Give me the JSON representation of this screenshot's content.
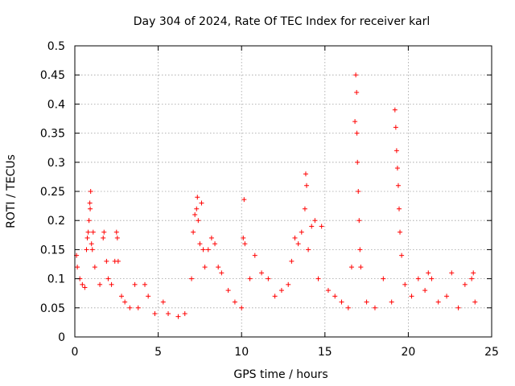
{
  "chart_data": {
    "type": "scatter",
    "title": "Day 304 of 2024, Rate Of TEC Index for receiver karl",
    "xlabel": "GPS time / hours",
    "ylabel": "ROTI / TECUs",
    "xlim": [
      0,
      25
    ],
    "ylim": [
      0,
      0.5
    ],
    "x_ticks": [
      "0",
      "5",
      "10",
      "15",
      "20",
      "25"
    ],
    "y_ticks": [
      "0",
      "0.05",
      "0.1",
      "0.15",
      "0.2",
      "0.25",
      "0.3",
      "0.35",
      "0.4",
      "0.45",
      "0.5"
    ],
    "grid": true,
    "marker": "plus",
    "color": "#ff0000",
    "series": [
      {
        "values": [
          [
            0.1,
            0.14
          ],
          [
            0.15,
            0.12
          ],
          [
            0.3,
            0.1
          ],
          [
            0.45,
            0.09
          ],
          [
            0.6,
            0.085
          ],
          [
            0.8,
            0.18
          ],
          [
            0.85,
            0.2
          ],
          [
            0.9,
            0.23
          ],
          [
            0.95,
            0.25
          ],
          [
            0.92,
            0.22
          ],
          [
            1.0,
            0.16
          ],
          [
            1.05,
            0.15
          ],
          [
            1.1,
            0.18
          ],
          [
            0.75,
            0.17
          ],
          [
            0.7,
            0.15
          ],
          [
            1.2,
            0.12
          ],
          [
            1.5,
            0.09
          ],
          [
            1.7,
            0.17
          ],
          [
            1.75,
            0.18
          ],
          [
            1.9,
            0.13
          ],
          [
            2.0,
            0.1
          ],
          [
            2.2,
            0.09
          ],
          [
            2.4,
            0.13
          ],
          [
            2.5,
            0.18
          ],
          [
            2.55,
            0.17
          ],
          [
            2.6,
            0.13
          ],
          [
            2.8,
            0.07
          ],
          [
            3.0,
            0.06
          ],
          [
            3.3,
            0.05
          ],
          [
            3.6,
            0.09
          ],
          [
            3.8,
            0.05
          ],
          [
            4.2,
            0.09
          ],
          [
            4.4,
            0.07
          ],
          [
            4.8,
            0.04
          ],
          [
            5.3,
            0.06
          ],
          [
            5.6,
            0.04
          ],
          [
            6.2,
            0.035
          ],
          [
            6.6,
            0.04
          ],
          [
            7.0,
            0.1
          ],
          [
            7.1,
            0.18
          ],
          [
            7.2,
            0.21
          ],
          [
            7.3,
            0.22
          ],
          [
            7.35,
            0.24
          ],
          [
            7.4,
            0.2
          ],
          [
            7.5,
            0.16
          ],
          [
            7.6,
            0.23
          ],
          [
            7.7,
            0.15
          ],
          [
            7.8,
            0.12
          ],
          [
            8.0,
            0.15
          ],
          [
            8.2,
            0.17
          ],
          [
            8.4,
            0.16
          ],
          [
            8.6,
            0.12
          ],
          [
            8.8,
            0.11
          ],
          [
            9.2,
            0.08
          ],
          [
            9.6,
            0.06
          ],
          [
            10.0,
            0.05
          ],
          [
            10.1,
            0.17
          ],
          [
            10.15,
            0.236
          ],
          [
            10.2,
            0.16
          ],
          [
            10.5,
            0.1
          ],
          [
            10.8,
            0.14
          ],
          [
            11.2,
            0.11
          ],
          [
            11.6,
            0.1
          ],
          [
            12.0,
            0.07
          ],
          [
            12.4,
            0.08
          ],
          [
            12.8,
            0.09
          ],
          [
            13.0,
            0.13
          ],
          [
            13.2,
            0.17
          ],
          [
            13.4,
            0.16
          ],
          [
            13.6,
            0.18
          ],
          [
            13.8,
            0.22
          ],
          [
            13.85,
            0.28
          ],
          [
            13.9,
            0.26
          ],
          [
            14.0,
            0.15
          ],
          [
            14.2,
            0.19
          ],
          [
            14.4,
            0.2
          ],
          [
            14.6,
            0.1
          ],
          [
            14.8,
            0.19
          ],
          [
            15.2,
            0.08
          ],
          [
            15.6,
            0.07
          ],
          [
            16.0,
            0.06
          ],
          [
            16.4,
            0.05
          ],
          [
            16.6,
            0.12
          ],
          [
            16.8,
            0.37
          ],
          [
            16.85,
            0.45
          ],
          [
            16.9,
            0.42
          ],
          [
            16.92,
            0.35
          ],
          [
            16.95,
            0.3
          ],
          [
            17.0,
            0.25
          ],
          [
            17.05,
            0.2
          ],
          [
            17.1,
            0.15
          ],
          [
            17.15,
            0.12
          ],
          [
            17.5,
            0.06
          ],
          [
            18.0,
            0.05
          ],
          [
            18.5,
            0.1
          ],
          [
            19.0,
            0.06
          ],
          [
            19.2,
            0.39
          ],
          [
            19.25,
            0.36
          ],
          [
            19.3,
            0.32
          ],
          [
            19.35,
            0.29
          ],
          [
            19.4,
            0.26
          ],
          [
            19.45,
            0.22
          ],
          [
            19.5,
            0.18
          ],
          [
            19.6,
            0.14
          ],
          [
            19.8,
            0.09
          ],
          [
            20.2,
            0.07
          ],
          [
            20.6,
            0.1
          ],
          [
            21.0,
            0.08
          ],
          [
            21.2,
            0.11
          ],
          [
            21.4,
            0.1
          ],
          [
            21.8,
            0.06
          ],
          [
            22.3,
            0.07
          ],
          [
            22.6,
            0.11
          ],
          [
            23.0,
            0.05
          ],
          [
            23.4,
            0.09
          ],
          [
            23.8,
            0.1
          ],
          [
            23.9,
            0.11
          ],
          [
            24.0,
            0.06
          ]
        ]
      }
    ]
  }
}
